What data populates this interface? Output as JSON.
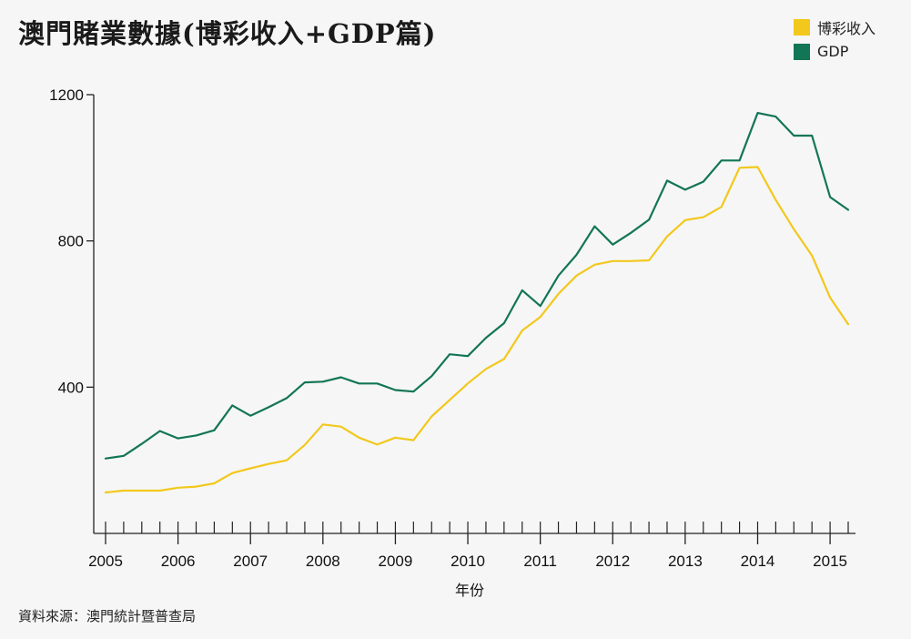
{
  "title": "澳門賭業數據(博彩收入+GDP篇)",
  "source": "資料來源：澳門統計暨普查局",
  "colors": {
    "gaming": "#f2c81c",
    "gdp": "#127556",
    "axis": "#222222"
  },
  "legend": [
    {
      "label": "博彩收入",
      "color": "#f2c81c"
    },
    {
      "label": "GDP",
      "color": "#127556"
    }
  ],
  "chart_data": {
    "type": "line",
    "xlabel": "年份",
    "ylabel": "",
    "xlim": [
      2005,
      2015.25
    ],
    "ylim": [
      0,
      1200
    ],
    "yticks": [
      400,
      800,
      1200
    ],
    "xticks": [
      2005,
      2006,
      2007,
      2008,
      2009,
      2010,
      2011,
      2012,
      2013,
      2014,
      2015
    ],
    "x": [
      2005.0,
      2005.25,
      2005.5,
      2005.75,
      2006.0,
      2006.25,
      2006.5,
      2006.75,
      2007.0,
      2007.25,
      2007.5,
      2007.75,
      2008.0,
      2008.25,
      2008.5,
      2008.75,
      2009.0,
      2009.25,
      2009.5,
      2009.75,
      2010.0,
      2010.25,
      2010.5,
      2010.75,
      2011.0,
      2011.25,
      2011.5,
      2011.75,
      2012.0,
      2012.25,
      2012.5,
      2012.75,
      2013.0,
      2013.25,
      2013.5,
      2013.75,
      2014.0,
      2014.25,
      2014.5,
      2014.75,
      2015.0,
      2015.25
    ],
    "series": [
      {
        "name": "GDP",
        "color": "#127556",
        "values": [
          205,
          212,
          245,
          280,
          260,
          268,
          282,
          350,
          322,
          345,
          370,
          413,
          415,
          427,
          410,
          410,
          392,
          388,
          430,
          490,
          485,
          535,
          575,
          665,
          622,
          705,
          762,
          840,
          790,
          822,
          858,
          965,
          940,
          962,
          1020,
          1020,
          1150,
          1140,
          1088,
          1088,
          920,
          885
        ]
      },
      {
        "name": "博彩收入",
        "color": "#f2c81c",
        "values": [
          112,
          117,
          117,
          117,
          125,
          128,
          137,
          165,
          178,
          190,
          200,
          242,
          298,
          292,
          262,
          243,
          262,
          255,
          320,
          365,
          410,
          450,
          477,
          555,
          592,
          655,
          705,
          735,
          745,
          745,
          747,
          812,
          857,
          865,
          893,
          1000,
          1002,
          912,
          832,
          760,
          645,
          572
        ]
      }
    ]
  }
}
